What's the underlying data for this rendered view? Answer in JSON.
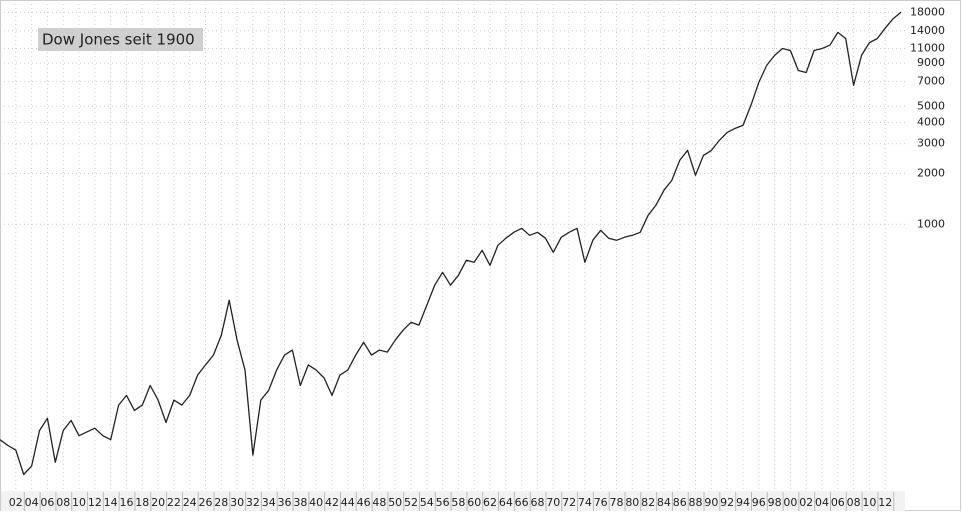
{
  "chart_data": {
    "type": "line",
    "title": "Dow Jones seit 1900",
    "color": "#222222",
    "yscale": "log",
    "grid": true,
    "x": [
      1900,
      1901,
      1902,
      1903,
      1904,
      1905,
      1906,
      1907,
      1908,
      1909,
      1910,
      1911,
      1912,
      1913,
      1914,
      1915,
      1916,
      1917,
      1918,
      1919,
      1920,
      1921,
      1922,
      1923,
      1924,
      1925,
      1926,
      1927,
      1928,
      1929,
      1930,
      1931,
      1932,
      1933,
      1934,
      1935,
      1936,
      1937,
      1938,
      1939,
      1940,
      1941,
      1942,
      1943,
      1944,
      1945,
      1946,
      1947,
      1948,
      1949,
      1950,
      1951,
      1952,
      1953,
      1954,
      1955,
      1956,
      1957,
      1958,
      1959,
      1960,
      1961,
      1962,
      1963,
      1964,
      1965,
      1966,
      1967,
      1968,
      1969,
      1970,
      1971,
      1972,
      1973,
      1974,
      1975,
      1976,
      1977,
      1978,
      1979,
      1980,
      1981,
      1982,
      1983,
      1984,
      1985,
      1986,
      1987,
      1988,
      1989,
      1990,
      1991,
      1992,
      1993,
      1994,
      1995,
      1996,
      1997,
      1998,
      1999,
      2000,
      2001,
      2002,
      2003,
      2004,
      2005,
      2006,
      2007,
      2008,
      2009,
      2010,
      2011,
      2012,
      2013,
      2014
    ],
    "values": [
      53,
      49,
      46,
      33,
      37,
      60,
      71,
      39,
      60,
      69,
      56,
      59,
      62,
      56,
      53,
      85,
      97,
      79,
      85,
      111,
      91,
      67,
      91,
      85,
      97,
      128,
      147,
      168,
      220,
      355,
      206,
      137,
      43,
      91,
      104,
      137,
      168,
      180,
      111,
      147,
      137,
      123,
      97,
      128,
      137,
      168,
      200,
      168,
      180,
      175,
      206,
      236,
      263,
      253,
      332,
      436,
      520,
      436,
      499,
      612,
      596,
      702,
      572,
      751,
      827,
      897,
      947,
      861,
      897,
      827,
      683,
      838,
      897,
      947,
      596,
      804,
      921,
      827,
      804,
      838,
      861,
      897,
      1130,
      1300,
      1590,
      1820,
      2390,
      2740,
      1950,
      2560,
      2740,
      3140,
      3500,
      3700,
      3850,
      5060,
      6920,
      8730,
      10000,
      11000,
      10700,
      8150,
      7930,
      10700,
      11000,
      11500,
      13700,
      12600,
      6660,
      10000,
      11900,
      12600,
      14500,
      16500,
      18000
    ],
    "xlim": [
      1900,
      2014.5
    ],
    "xticks": [
      {
        "value": 1902,
        "label": "02"
      },
      {
        "value": 1904,
        "label": "04"
      },
      {
        "value": 1906,
        "label": "06"
      },
      {
        "value": 1908,
        "label": "08"
      },
      {
        "value": 1910,
        "label": "10"
      },
      {
        "value": 1912,
        "label": "12"
      },
      {
        "value": 1914,
        "label": "14"
      },
      {
        "value": 1916,
        "label": "16"
      },
      {
        "value": 1918,
        "label": "18"
      },
      {
        "value": 1920,
        "label": "20"
      },
      {
        "value": 1922,
        "label": "22"
      },
      {
        "value": 1924,
        "label": "24"
      },
      {
        "value": 1926,
        "label": "26"
      },
      {
        "value": 1928,
        "label": "28"
      },
      {
        "value": 1930,
        "label": "30"
      },
      {
        "value": 1932,
        "label": "32"
      },
      {
        "value": 1934,
        "label": "34"
      },
      {
        "value": 1936,
        "label": "36"
      },
      {
        "value": 1938,
        "label": "38"
      },
      {
        "value": 1940,
        "label": "40"
      },
      {
        "value": 1942,
        "label": "42"
      },
      {
        "value": 1944,
        "label": "44"
      },
      {
        "value": 1946,
        "label": "46"
      },
      {
        "value": 1948,
        "label": "48"
      },
      {
        "value": 1950,
        "label": "50"
      },
      {
        "value": 1952,
        "label": "52"
      },
      {
        "value": 1954,
        "label": "54"
      },
      {
        "value": 1956,
        "label": "56"
      },
      {
        "value": 1958,
        "label": "58"
      },
      {
        "value": 1960,
        "label": "60"
      },
      {
        "value": 1962,
        "label": "62"
      },
      {
        "value": 1964,
        "label": "64"
      },
      {
        "value": 1966,
        "label": "66"
      },
      {
        "value": 1968,
        "label": "68"
      },
      {
        "value": 1970,
        "label": "70"
      },
      {
        "value": 1972,
        "label": "72"
      },
      {
        "value": 1974,
        "label": "74"
      },
      {
        "value": 1976,
        "label": "76"
      },
      {
        "value": 1978,
        "label": "78"
      },
      {
        "value": 1980,
        "label": "80"
      },
      {
        "value": 1982,
        "label": "82"
      },
      {
        "value": 1984,
        "label": "84"
      },
      {
        "value": 1986,
        "label": "86"
      },
      {
        "value": 1988,
        "label": "88"
      },
      {
        "value": 1990,
        "label": "90"
      },
      {
        "value": 1992,
        "label": "92"
      },
      {
        "value": 1994,
        "label": "94"
      },
      {
        "value": 1996,
        "label": "96"
      },
      {
        "value": 1998,
        "label": "98"
      },
      {
        "value": 2000,
        "label": "00"
      },
      {
        "value": 2002,
        "label": "02"
      },
      {
        "value": 2004,
        "label": "04"
      },
      {
        "value": 2006,
        "label": "06"
      },
      {
        "value": 2008,
        "label": "08"
      },
      {
        "value": 2010,
        "label": "10"
      },
      {
        "value": 2012,
        "label": "12"
      }
    ],
    "ylim": [
      26.7,
      21300
    ],
    "yticks": [
      1000,
      2000,
      3000,
      4000,
      5000,
      7000,
      9000,
      11000,
      14000,
      18000
    ]
  }
}
